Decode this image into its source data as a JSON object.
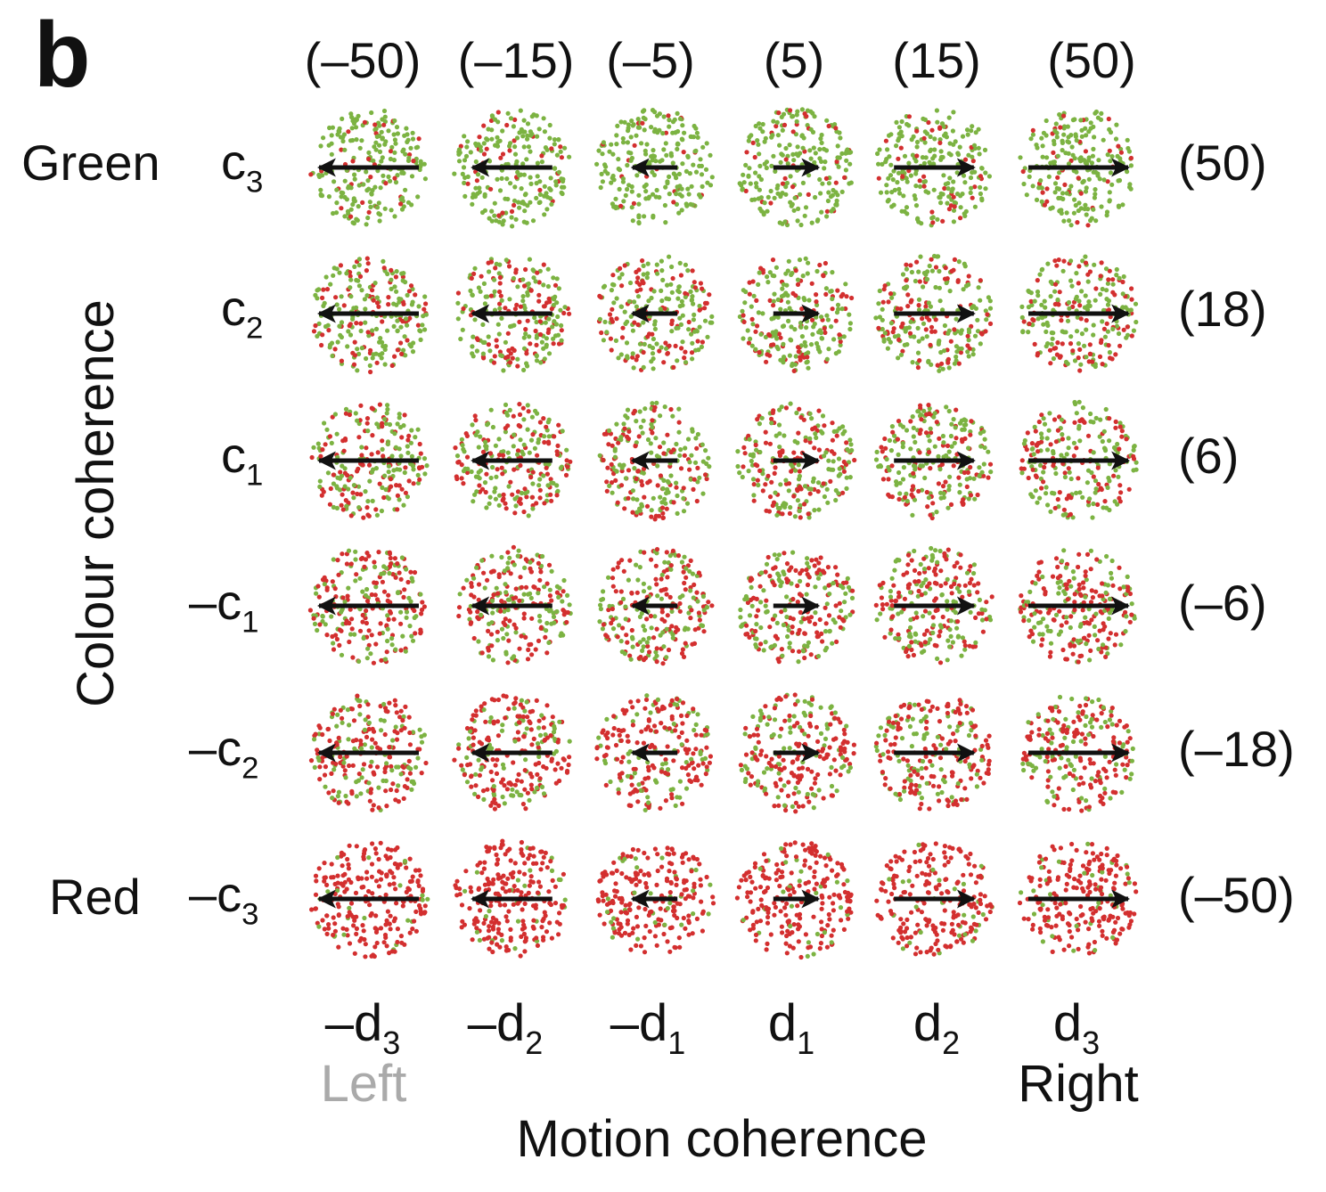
{
  "panel_label": "b",
  "motion_values": [
    "(–50)",
    "(–15)",
    "(–5)",
    "(5)",
    "(15)",
    "(50)"
  ],
  "motion_symbols": [
    {
      "prefix": "–d",
      "sub": "3"
    },
    {
      "prefix": "–d",
      "sub": "2"
    },
    {
      "prefix": "–d",
      "sub": "1"
    },
    {
      "prefix": "d",
      "sub": "1"
    },
    {
      "prefix": "d",
      "sub": "2"
    },
    {
      "prefix": "d",
      "sub": "3"
    }
  ],
  "colour_values": [
    "(50)",
    "(18)",
    "(6)",
    "(–6)",
    "(–18)",
    "(–50)"
  ],
  "colour_symbols": [
    {
      "prefix": "c",
      "sub": "3"
    },
    {
      "prefix": "c",
      "sub": "2"
    },
    {
      "prefix": "c",
      "sub": "1"
    },
    {
      "prefix": "–c",
      "sub": "1"
    },
    {
      "prefix": "–c",
      "sub": "2"
    },
    {
      "prefix": "–c",
      "sub": "3"
    }
  ],
  "colour_axis_title": "Colour coherence",
  "motion_axis_title": "Motion coherence",
  "green_label": "Green",
  "red_label": "Red",
  "left_label": "Left",
  "right_label": "Right",
  "left_label_color": "#aaaaaa",
  "dot_colors": {
    "green": "#7cb342",
    "red": "#d32f2f"
  },
  "arrow_color": "#111111",
  "stimuli": {
    "green_fraction_by_row": [
      0.88,
      0.65,
      0.56,
      0.44,
      0.35,
      0.12
    ],
    "arrow_direction_by_col": [
      "left",
      "left",
      "left",
      "right",
      "right",
      "right"
    ],
    "arrow_strength_by_col": [
      1.0,
      0.8,
      0.45,
      0.45,
      0.8,
      1.0
    ]
  }
}
